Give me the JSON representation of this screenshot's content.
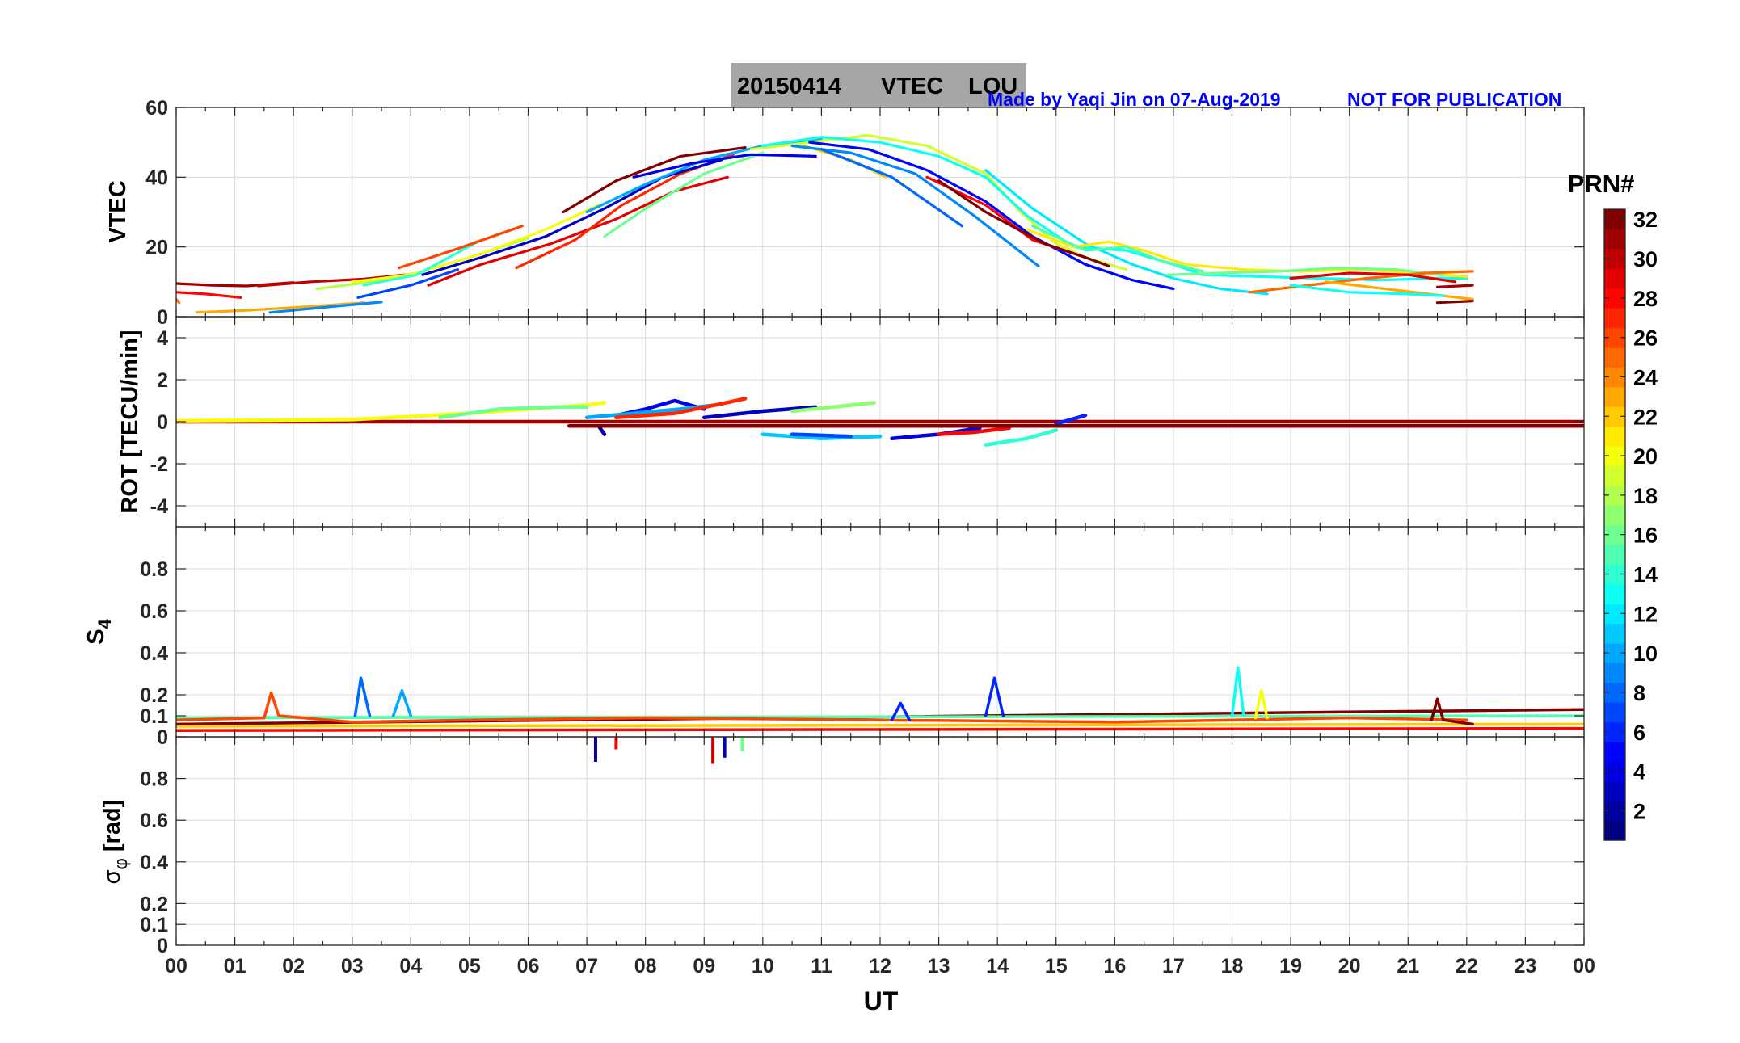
{
  "title": {
    "date": "20150414",
    "product": "VTEC",
    "station": "LOU",
    "credit": "Made by Yaqi Jin on 07-Aug-2019",
    "notice": "NOT FOR PUBLICATION",
    "bg_color": "#a6a6a6",
    "credit_color": "#0000ff"
  },
  "x_axis": {
    "label": "UT",
    "range": [
      0,
      24
    ],
    "tick_labels": [
      "00",
      "01",
      "02",
      "03",
      "04",
      "05",
      "06",
      "07",
      "08",
      "09",
      "10",
      "11",
      "12",
      "13",
      "14",
      "15",
      "16",
      "17",
      "18",
      "19",
      "20",
      "21",
      "22",
      "23",
      "00"
    ]
  },
  "colorbar": {
    "title": "PRN#",
    "range": [
      1,
      32
    ],
    "tick_labels": [
      "2",
      "4",
      "6",
      "8",
      "10",
      "12",
      "14",
      "16",
      "18",
      "20",
      "22",
      "24",
      "26",
      "28",
      "30",
      "32"
    ],
    "colormap": "jet"
  },
  "chart_data": [
    {
      "type": "line",
      "panel": "vtec",
      "ylabel": "VTEC",
      "ylim": [
        0,
        60
      ],
      "yticks": [
        0,
        20,
        40,
        60
      ],
      "ytick_labels": [
        "0",
        "20",
        "40",
        "60"
      ],
      "grid": true,
      "series": [
        {
          "prn": 31,
          "x": [
            0.0,
            0.6,
            1.2,
            2.0
          ],
          "y": [
            9.5,
            9.0,
            8.8,
            9.8
          ]
        },
        {
          "prn": 28,
          "x": [
            0.0,
            0.5,
            1.1
          ],
          "y": [
            7.0,
            6.5,
            5.5
          ]
        },
        {
          "prn": 25,
          "x": [
            0.0,
            0.05
          ],
          "y": [
            5.0,
            4.0
          ]
        },
        {
          "prn": 23,
          "x": [
            0.35,
            1.2,
            2.2,
            3.2
          ],
          "y": [
            1.2,
            1.8,
            2.8,
            4.0
          ]
        },
        {
          "prn": 9,
          "x": [
            1.6,
            2.6,
            3.5
          ],
          "y": [
            1.2,
            2.8,
            4.2
          ]
        },
        {
          "prn": 30,
          "x": [
            1.4,
            2.3,
            3.2,
            3.9
          ],
          "y": [
            8.8,
            10.0,
            10.8,
            12.0
          ]
        },
        {
          "prn": 18,
          "x": [
            2.4,
            3.1,
            4.1,
            5.1,
            6.0
          ],
          "y": [
            8.0,
            9.5,
            12.5,
            17.5,
            22.5
          ]
        },
        {
          "prn": 20,
          "x": [
            3.0,
            4.0,
            5.2,
            6.3,
            7.2
          ],
          "y": [
            10.0,
            12.0,
            18.0,
            25.0,
            32.0
          ]
        },
        {
          "prn": 14,
          "x": [
            3.2,
            4.1,
            5.2
          ],
          "y": [
            9.0,
            12.0,
            22.0
          ]
        },
        {
          "prn": 7,
          "x": [
            3.1,
            4.0,
            4.8
          ],
          "y": [
            5.5,
            9.0,
            13.5
          ]
        },
        {
          "prn": 29,
          "x": [
            4.3,
            5.2,
            6.4,
            7.5,
            8.5,
            9.4
          ],
          "y": [
            9.0,
            15.0,
            21.0,
            28.0,
            36.0,
            40.0
          ]
        },
        {
          "prn": 26,
          "x": [
            3.8,
            4.8,
            5.9
          ],
          "y": [
            14.0,
            19.5,
            26.0
          ]
        },
        {
          "prn": 27,
          "x": [
            5.8,
            6.8,
            7.6,
            8.6,
            9.5
          ],
          "y": [
            14.0,
            22.0,
            32.0,
            41.0,
            46.5
          ]
        },
        {
          "prn": 3,
          "x": [
            4.2,
            5.2,
            6.3,
            7.3,
            8.3,
            9.3
          ],
          "y": [
            12.0,
            17.0,
            23.0,
            31.0,
            40.0,
            45.0
          ]
        },
        {
          "prn": 16,
          "x": [
            7.3,
            8.0,
            9.0,
            10.0
          ],
          "y": [
            23.0,
            31.0,
            41.0,
            47.0
          ]
        },
        {
          "prn": 10,
          "x": [
            7.0,
            8.0,
            9.0,
            10.0,
            11.0
          ],
          "y": [
            30.0,
            38.0,
            45.0,
            49.0,
            51.0
          ]
        },
        {
          "prn": 32,
          "x": [
            6.6,
            7.5,
            8.6,
            9.7
          ],
          "y": [
            30.0,
            39.0,
            46.0,
            48.5
          ]
        },
        {
          "prn": 4,
          "x": [
            7.8,
            8.8,
            9.8,
            10.9
          ],
          "y": [
            40.0,
            44.0,
            46.5,
            46.0
          ]
        },
        {
          "prn": 19,
          "x": [
            9.8,
            10.8,
            11.8,
            12.8,
            13.8,
            14.4,
            15.0,
            15.5,
            16.2
          ],
          "y": [
            48.0,
            50.0,
            52.0,
            49.0,
            41.0,
            30.0,
            21.0,
            17.0,
            13.5
          ]
        },
        {
          "prn": 22,
          "x": [
            10.7,
            11.5,
            12.1
          ],
          "y": [
            49.0,
            45.0,
            40.0
          ]
        },
        {
          "prn": 13,
          "x": [
            10.0,
            11.0,
            12.0,
            13.0,
            13.8,
            14.5,
            15.3,
            16.2,
            17.0,
            17.5,
            18.5,
            19.5,
            20.5,
            21.5,
            22.0
          ],
          "y": [
            49.0,
            51.5,
            50.0,
            46.0,
            40.0,
            29.0,
            20.0,
            19.0,
            15.0,
            12.0,
            11.5,
            11.0,
            10.5,
            11.0,
            11.0
          ]
        },
        {
          "prn": 9,
          "x": [
            10.5,
            11.5,
            12.6,
            13.6,
            14.7
          ],
          "y": [
            49.0,
            47.0,
            41.0,
            29.0,
            14.5
          ]
        },
        {
          "prn": 5,
          "x": [
            10.8,
            11.8,
            12.8,
            13.8,
            14.6,
            15.5,
            16.3,
            17.0
          ],
          "y": [
            50.0,
            48.0,
            42.0,
            33.0,
            23.0,
            15.0,
            10.5,
            8.0
          ]
        },
        {
          "prn": 8,
          "x": [
            11.0,
            12.2,
            13.4
          ],
          "y": [
            48.0,
            40.0,
            26.0
          ]
        },
        {
          "prn": 28,
          "x": [
            12.8,
            13.8,
            14.6,
            15.5
          ],
          "y": [
            40.0,
            32.0,
            22.0,
            17.0
          ]
        },
        {
          "prn": 32,
          "x": [
            13.0,
            13.8,
            14.8,
            15.5,
            15.9
          ],
          "y": [
            39.0,
            30.0,
            21.0,
            17.0,
            14.5
          ]
        },
        {
          "prn": 12,
          "x": [
            13.8,
            14.6,
            15.5,
            16.3,
            17.0,
            17.8,
            18.6
          ],
          "y": [
            42.0,
            31.0,
            21.0,
            15.0,
            11.0,
            8.0,
            6.5
          ]
        },
        {
          "prn": 21,
          "x": [
            14.5,
            15.3,
            15.9,
            16.5,
            17.2,
            18.2,
            19.2,
            20.2,
            21.2,
            22.0
          ],
          "y": [
            25.0,
            20.0,
            21.5,
            19.0,
            15.0,
            13.5,
            13.0,
            13.5,
            12.5,
            11.5
          ]
        },
        {
          "prn": 15,
          "x": [
            14.6,
            15.5,
            16.2,
            16.8,
            17.5
          ],
          "y": [
            26.0,
            19.0,
            20.0,
            16.0,
            13.0
          ]
        },
        {
          "prn": 16,
          "x": [
            16.9,
            17.8,
            18.8,
            19.8,
            20.8,
            21.6
          ],
          "y": [
            12.0,
            12.5,
            13.0,
            14.0,
            13.5,
            12.0
          ]
        },
        {
          "prn": 25,
          "x": [
            18.3,
            19.3,
            20.3,
            21.3,
            22.1
          ],
          "y": [
            7.0,
            9.0,
            11.0,
            12.5,
            13.0
          ]
        },
        {
          "prn": 23,
          "x": [
            19.6,
            20.6,
            21.6,
            22.1
          ],
          "y": [
            10.0,
            8.0,
            6.0,
            5.0
          ]
        },
        {
          "prn": 13,
          "x": [
            19.0,
            20.0,
            21.0,
            21.6
          ],
          "y": [
            9.0,
            7.0,
            6.5,
            6.0
          ]
        },
        {
          "prn": 29,
          "x": [
            19.0,
            20.0,
            21.0,
            21.8
          ],
          "y": [
            11.0,
            12.5,
            12.0,
            10.0
          ]
        },
        {
          "prn": 31,
          "x": [
            21.5,
            22.1
          ],
          "y": [
            8.5,
            9.0
          ]
        },
        {
          "prn": 32,
          "x": [
            21.5,
            22.1
          ],
          "y": [
            4.0,
            4.5
          ]
        }
      ]
    },
    {
      "type": "line",
      "panel": "rot",
      "ylabel": "ROT [TECU/min]",
      "ylim": [
        -5,
        5
      ],
      "yticks": [
        -4,
        -2,
        0,
        2,
        4
      ],
      "ytick_labels": [
        "-4",
        "-2",
        "0",
        "2",
        "4"
      ],
      "grid": true,
      "series": [
        {
          "prn": 31,
          "x": [
            0.0,
            24.0
          ],
          "y": [
            0.0,
            0.0
          ]
        },
        {
          "prn": 20,
          "x": [
            0.0,
            3.0,
            5.0,
            7.0,
            7.3
          ],
          "y": [
            0.05,
            0.1,
            0.4,
            0.8,
            0.9
          ]
        },
        {
          "prn": 16,
          "x": [
            4.5,
            5.5,
            6.5,
            7.0
          ],
          "y": [
            0.2,
            0.6,
            0.7,
            0.7
          ]
        },
        {
          "prn": 4,
          "x": [
            7.5,
            8.0,
            8.5,
            9.0
          ],
          "y": [
            0.3,
            0.6,
            1.0,
            0.6
          ]
        },
        {
          "prn": 10,
          "x": [
            7.0,
            7.8,
            8.6,
            9.2
          ],
          "y": [
            0.2,
            0.4,
            0.6,
            0.8
          ]
        },
        {
          "prn": 27,
          "x": [
            7.5,
            8.5,
            9.2,
            9.7
          ],
          "y": [
            0.2,
            0.4,
            0.8,
            1.1
          ]
        },
        {
          "prn": 3,
          "x": [
            9.0,
            10.0,
            10.9
          ],
          "y": [
            0.2,
            0.5,
            0.7
          ]
        },
        {
          "prn": 17,
          "x": [
            10.5,
            11.2,
            11.9
          ],
          "y": [
            0.5,
            0.7,
            0.9
          ]
        },
        {
          "prn": 2,
          "x": [
            7.2,
            7.3
          ],
          "y": [
            -0.2,
            -0.6
          ]
        },
        {
          "prn": 11,
          "x": [
            10.0,
            11.0,
            12.0
          ],
          "y": [
            -0.6,
            -0.8,
            -0.7
          ]
        },
        {
          "prn": 7,
          "x": [
            10.5,
            11.5
          ],
          "y": [
            -0.6,
            -0.7
          ]
        },
        {
          "prn": 4,
          "x": [
            12.2,
            13.0,
            13.7
          ],
          "y": [
            -0.8,
            -0.6,
            -0.3
          ]
        },
        {
          "prn": 28,
          "x": [
            13.0,
            13.6,
            14.2
          ],
          "y": [
            -0.6,
            -0.5,
            -0.3
          ]
        },
        {
          "prn": 14,
          "x": [
            13.8,
            14.5,
            15.0
          ],
          "y": [
            -1.1,
            -0.8,
            -0.4
          ]
        },
        {
          "prn": 6,
          "x": [
            15.0,
            15.5
          ],
          "y": [
            -0.1,
            0.3
          ]
        },
        {
          "prn": 32,
          "x": [
            6.7,
            24.0
          ],
          "y": [
            -0.2,
            -0.2
          ]
        }
      ]
    },
    {
      "type": "line",
      "panel": "s4",
      "ylabel": "S4",
      "ylim": [
        0,
        1
      ],
      "yticks": [
        0,
        0.1,
        0.2,
        0.4,
        0.6,
        0.8
      ],
      "ytick_labels": [
        "0",
        "0.1",
        "0.2",
        "0.4",
        "0.6",
        "0.8"
      ],
      "grid": true,
      "series": [
        {
          "prn": 32,
          "x": [
            0.0,
            24.0
          ],
          "y": [
            0.06,
            0.13
          ]
        },
        {
          "prn": 28,
          "x": [
            0.0,
            24.0
          ],
          "y": [
            0.03,
            0.04
          ]
        },
        {
          "prn": 15,
          "x": [
            0.0,
            24.0
          ],
          "y": [
            0.09,
            0.1
          ]
        },
        {
          "prn": 22,
          "x": [
            0.0,
            24.0
          ],
          "y": [
            0.05,
            0.06
          ]
        },
        {
          "prn": 26,
          "x": [
            0.0,
            1.5,
            1.62,
            1.75,
            3.0,
            5.0,
            8.0,
            12.0,
            16.0,
            20.0,
            22.0
          ],
          "y": [
            0.08,
            0.09,
            0.21,
            0.1,
            0.07,
            0.08,
            0.09,
            0.08,
            0.07,
            0.09,
            0.08
          ]
        },
        {
          "prn": 8,
          "x": [
            3.05,
            3.15,
            3.3
          ],
          "y": [
            0.1,
            0.28,
            0.1
          ]
        },
        {
          "prn": 10,
          "x": [
            3.7,
            3.85,
            4.0
          ],
          "y": [
            0.1,
            0.22,
            0.1
          ]
        },
        {
          "prn": 6,
          "x": [
            12.2,
            12.35,
            12.5
          ],
          "y": [
            0.08,
            0.16,
            0.08
          ]
        },
        {
          "prn": 6,
          "x": [
            13.8,
            13.95,
            14.1
          ],
          "y": [
            0.1,
            0.28,
            0.1
          ]
        },
        {
          "prn": 13,
          "x": [
            18.0,
            18.1,
            18.2
          ],
          "y": [
            0.1,
            0.33,
            0.1
          ]
        },
        {
          "prn": 20,
          "x": [
            18.4,
            18.5,
            18.6
          ],
          "y": [
            0.09,
            0.22,
            0.09
          ]
        },
        {
          "prn": 32,
          "x": [
            21.4,
            21.5,
            21.6,
            22.1
          ],
          "y": [
            0.08,
            0.18,
            0.08,
            0.06
          ]
        }
      ]
    },
    {
      "type": "bar",
      "panel": "sigma_phi",
      "ylabel": "σφ [rad]",
      "ylim": [
        0,
        1
      ],
      "yticks": [
        0,
        0.1,
        0.2,
        0.4,
        0.6,
        0.8
      ],
      "ytick_labels": [
        "0",
        "0.1",
        "0.2",
        "0.4",
        "0.6",
        "0.8"
      ],
      "grid": true,
      "spikes": [
        {
          "prn": 2,
          "x": 7.15,
          "y0": 1.0,
          "y1": 0.88
        },
        {
          "prn": 28,
          "x": 7.5,
          "y0": 1.0,
          "y1": 0.94
        },
        {
          "prn": 30,
          "x": 9.15,
          "y0": 1.0,
          "y1": 0.87
        },
        {
          "prn": 3,
          "x": 9.35,
          "y0": 1.0,
          "y1": 0.9
        },
        {
          "prn": 16,
          "x": 9.65,
          "y0": 1.0,
          "y1": 0.93
        }
      ]
    }
  ]
}
